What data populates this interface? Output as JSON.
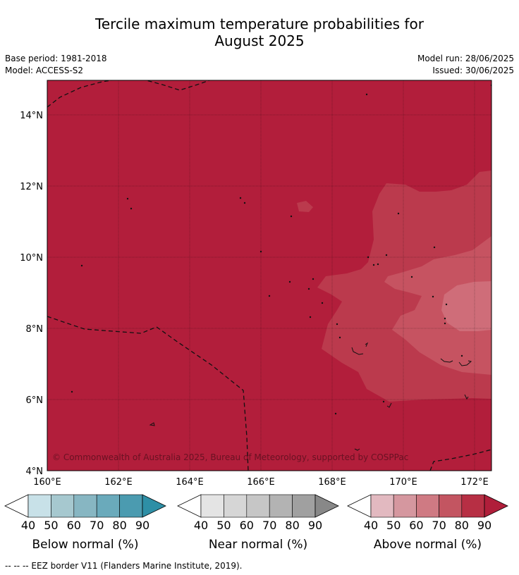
{
  "title_line1": "Tercile maximum temperature probabilities for",
  "title_line2": "August 2025",
  "base_period": "Base period: 1981-2018",
  "model": "Model: ACCESS-S2",
  "model_run": "Model run: 28/06/2025",
  "issued": "Issued: 30/06/2025",
  "copyright": "© Commonwealth of Australia 2025, Bureau of Meteorology, supported by COSPPac",
  "lat_labels": [
    "14°N",
    "12°N",
    "10°N",
    "8°N",
    "6°N",
    "4°N"
  ],
  "lon_labels": [
    "160°E",
    "162°E",
    "164°E",
    "166°E",
    "168°E",
    "170°E",
    "172°E"
  ],
  "colorbars": [
    {
      "label": "Below normal (%)",
      "ticks": [
        "40",
        "50",
        "60",
        "70",
        "80",
        "90"
      ],
      "colors": [
        "#ffffff",
        "#c8e1e8",
        "#a6c8cf",
        "#87b6c2",
        "#6aaabb",
        "#4b9bb0",
        "#2e8fa6"
      ]
    },
    {
      "label": "Near normal (%)",
      "ticks": [
        "40",
        "50",
        "60",
        "70",
        "80",
        "90"
      ],
      "colors": [
        "#ffffff",
        "#e4e4e4",
        "#d6d6d6",
        "#c6c6c6",
        "#b3b3b3",
        "#a0a0a0",
        "#888888"
      ]
    },
    {
      "label": "Above normal (%)",
      "ticks": [
        "40",
        "50",
        "60",
        "70",
        "80",
        "90"
      ],
      "colors": [
        "#ffffff",
        "#e2b9c0",
        "#d5979f",
        "#cf7a83",
        "#c35561",
        "#b72f44",
        "#b01e3a"
      ]
    }
  ],
  "footnote": "-- -- -- EEZ border V11 (Flanders Marine Institute, 2019).",
  "map_colors": {
    "above_80_90": "#b21e3b",
    "above_70_80": "#bb3a4d",
    "above_60_70": "#c65361",
    "above_50_60": "#cf6d79"
  }
}
